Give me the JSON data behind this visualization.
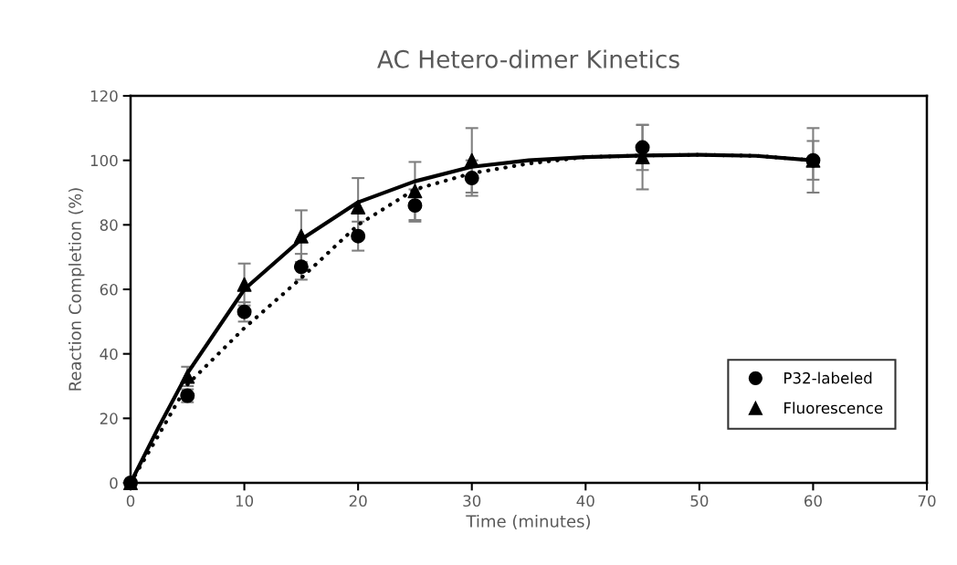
{
  "chart_data": {
    "type": "scatter",
    "title": "AC Hetero-dimer Kinetics",
    "xlabel": "Time (minutes)",
    "ylabel": "Reaction Completion (%)",
    "x": [
      0,
      5,
      10,
      15,
      20,
      25,
      30,
      45,
      60
    ],
    "series": [
      {
        "name": "P32-labeled",
        "marker": "circle",
        "color": "#000000",
        "values": [
          0,
          27,
          53,
          67,
          76.5,
          86,
          94.5,
          104,
          100
        ],
        "errors": [
          null,
          2,
          3,
          4,
          4.5,
          5,
          5.5,
          7,
          6
        ]
      },
      {
        "name": "Fluorescence",
        "marker": "triangle",
        "color": "#000000",
        "values": [
          0,
          33,
          61.5,
          76.5,
          85.5,
          90.5,
          100,
          101,
          100
        ],
        "errors": [
          null,
          3,
          6.5,
          8,
          9,
          9,
          10,
          10,
          10
        ]
      },
      {
        "type": "line",
        "line_style": "dotted",
        "color": "#000000",
        "x": [
          0,
          2.5,
          5,
          10,
          15,
          20,
          25,
          30,
          35,
          40,
          45,
          50,
          55,
          60
        ],
        "values": [
          0,
          15,
          30.5,
          48,
          63.5,
          80,
          91,
          96,
          99,
          101,
          101.5,
          101.7,
          101.4,
          100
        ]
      },
      {
        "type": "line",
        "line_style": "solid",
        "color": "#000000",
        "x": [
          0,
          2.5,
          5,
          10,
          15,
          20,
          25,
          30,
          35,
          40,
          45,
          50,
          55,
          60
        ],
        "values": [
          0,
          17.5,
          34,
          60,
          75.5,
          87,
          93.5,
          98,
          100,
          101,
          101.5,
          101.7,
          101.4,
          100
        ]
      }
    ],
    "xlim": [
      0,
      70
    ],
    "xticks": [
      0,
      10,
      20,
      30,
      40,
      50,
      60,
      70
    ],
    "ylim": [
      0,
      120
    ],
    "yticks": [
      0,
      20,
      40,
      60,
      80,
      100,
      120
    ],
    "grid": false,
    "legend": "lower right"
  }
}
